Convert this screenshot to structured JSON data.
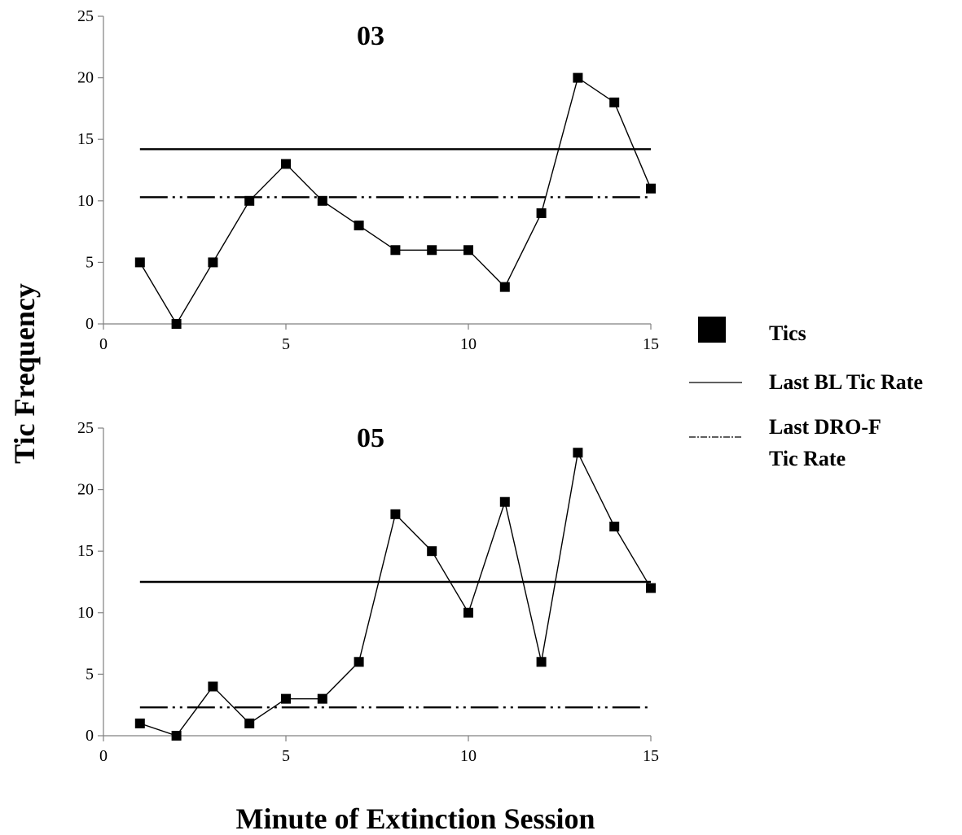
{
  "chart_data": [
    {
      "type": "line",
      "title": "03",
      "x": [
        1,
        2,
        3,
        4,
        5,
        6,
        7,
        8,
        9,
        10,
        11,
        12,
        13,
        14,
        15
      ],
      "xlim": [
        0,
        15
      ],
      "ylim": [
        0,
        25
      ],
      "xticks": [
        "0",
        "5",
        "10",
        "15"
      ],
      "yticks": [
        "0",
        "5",
        "10",
        "15",
        "20",
        "25"
      ],
      "series": [
        {
          "name": "Tics",
          "style": "line-square-markers",
          "values": [
            5,
            0,
            5,
            10,
            13,
            10,
            8,
            6,
            6,
            6,
            3,
            9,
            20,
            18,
            11
          ]
        }
      ],
      "reference_lines": [
        {
          "name": "Last BL Tic Rate",
          "style": "solid",
          "y": 14.2,
          "x_range": [
            1,
            15
          ]
        },
        {
          "name": "Last DRO-F Tic Rate",
          "style": "dash-dot-dot",
          "y": 10.3,
          "x_range": [
            1,
            15
          ]
        }
      ]
    },
    {
      "type": "line",
      "title": "05",
      "x": [
        1,
        2,
        3,
        4,
        5,
        6,
        7,
        8,
        9,
        10,
        11,
        12,
        13,
        14,
        15
      ],
      "xlim": [
        0,
        15
      ],
      "ylim": [
        0,
        25
      ],
      "xticks": [
        "0",
        "5",
        "10",
        "15"
      ],
      "yticks": [
        "0",
        "5",
        "10",
        "15",
        "20",
        "25"
      ],
      "series": [
        {
          "name": "Tics",
          "style": "line-square-markers",
          "values": [
            1,
            0,
            4,
            1,
            3,
            3,
            6,
            18,
            15,
            10,
            19,
            6,
            23,
            17,
            12
          ]
        }
      ],
      "reference_lines": [
        {
          "name": "Last BL Tic Rate",
          "style": "solid",
          "y": 12.5,
          "x_range": [
            1,
            15
          ]
        },
        {
          "name": "Last DRO-F Tic Rate",
          "style": "dash-dot-dot",
          "y": 2.3,
          "x_range": [
            1,
            15
          ]
        }
      ]
    }
  ],
  "ylabel": "Tic Frequency",
  "xlabel": "Minute of Extinction Session",
  "legend": {
    "position": "right",
    "items": [
      {
        "marker": "filled-square",
        "line1": "Tics",
        "line2": ""
      },
      {
        "marker": "solid-line",
        "line1": "Last BL Tic Rate",
        "line2": ""
      },
      {
        "marker": "dash-dot-line",
        "line1": "Last DRO-F",
        "line2": "Tic Rate"
      }
    ]
  }
}
